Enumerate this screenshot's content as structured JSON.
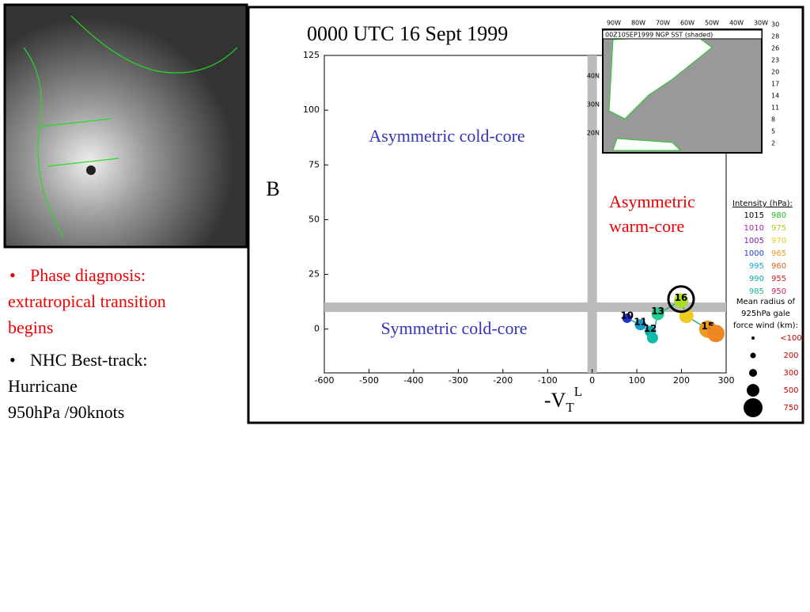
{
  "slide": {
    "bullets": [
      [
        "Phase diagnosis:",
        "extratropical transition",
        "begins"
      ],
      [
        "NHC Best-track:",
        "Hurricane",
        "950hPa /90knots"
      ]
    ]
  },
  "chart_data": {
    "type": "scatter",
    "title": "0000 UTC 16 Sept 1999",
    "xlabel": "-V",
    "xlabel_sub": "T",
    "xlabel_sup": "L",
    "ylabel": "B",
    "xlim": [
      -600,
      300
    ],
    "ylim": [
      -20,
      125
    ],
    "xticks": [
      -600,
      -500,
      -400,
      -300,
      -200,
      -100,
      0,
      100,
      200,
      300
    ],
    "yticks": [
      0,
      25,
      50,
      75,
      100,
      125
    ],
    "regions": [
      [
        "Asymmetric cold-core"
      ],
      [
        "Asymmetric",
        "warm-core"
      ],
      [
        "Symmetric cold-core"
      ]
    ],
    "thresholds": {
      "x": 0,
      "y": 10
    },
    "series": [
      {
        "name": "track",
        "x": [
          78,
          108,
          130,
          135,
          147,
          199,
          211,
          259,
          277
        ],
        "y": [
          5,
          2,
          -1,
          -4,
          7,
          13,
          6,
          0,
          -2
        ],
        "colors": [
          "#2233cc",
          "#1199cc",
          "#11aaaa",
          "#11bbaa",
          "#22cc99",
          "#aadd22",
          "#eecc22",
          "#ee9922",
          "#ee8822"
        ],
        "sizes": [
          6,
          7,
          7,
          7,
          8,
          9,
          9,
          11,
          11
        ],
        "labels": [
          "10",
          "11",
          "12",
          null,
          "13",
          "16",
          null,
          "15",
          null
        ]
      }
    ],
    "legend": {
      "title": "Intensity (hPa):",
      "rows": [
        [
          "1015",
          "980"
        ],
        [
          "1010",
          "975"
        ],
        [
          "1005",
          "970"
        ],
        [
          "1000",
          "965"
        ],
        [
          "995",
          "960"
        ],
        [
          "990",
          "955"
        ],
        [
          "985",
          "950"
        ]
      ],
      "colors": [
        [
          "#000000",
          "#22bb22"
        ],
        [
          "#aa22aa",
          "#aacc22"
        ],
        [
          "#7722aa",
          "#ddcc22"
        ],
        [
          "#2244cc",
          "#ee9922"
        ],
        [
          "#11aadd",
          "#dd6622"
        ],
        [
          "#11aaaa",
          "#cc2222"
        ],
        [
          "#11bb99",
          "#cc2266"
        ]
      ],
      "radius_title": [
        "Mean radius of",
        "925hPa gale",
        "force wind (km):"
      ],
      "radius_labels": [
        "<100",
        "200",
        "300",
        "500",
        "750"
      ],
      "radius_sizes": [
        2,
        3.5,
        5,
        8,
        12
      ]
    },
    "inset": {
      "title": "00Z10SEP1999 NGP SST (shaded)",
      "lon_labels": [
        "90W",
        "80W",
        "70W",
        "60W",
        "50W",
        "40W",
        "30W"
      ],
      "lat_labels": [
        "40N",
        "30N",
        "20N"
      ],
      "scale": [
        "30",
        "28",
        "26",
        "23",
        "20",
        "17",
        "14",
        "11",
        "8",
        "5",
        "2"
      ]
    }
  }
}
